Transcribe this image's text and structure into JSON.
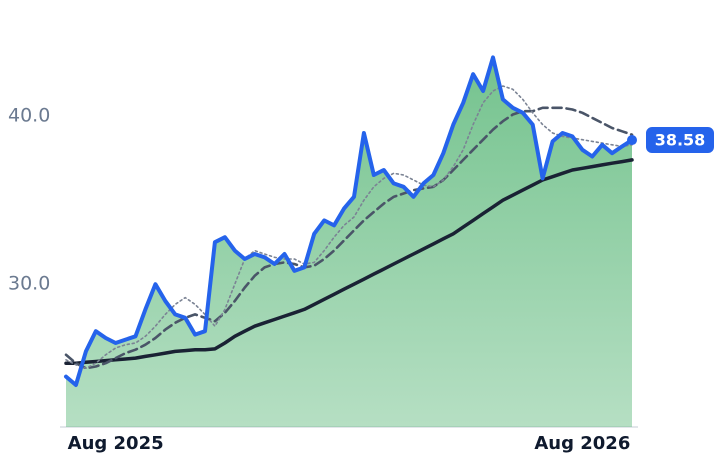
{
  "chart_data": {
    "type": "line",
    "categories": [
      null,
      null,
      null,
      null,
      null,
      "Aug 2025",
      null,
      null,
      null,
      null,
      null,
      null,
      null,
      null,
      null,
      null,
      null,
      null,
      null,
      null,
      null,
      null,
      null,
      null,
      null,
      null,
      null,
      null,
      null,
      null,
      null,
      null,
      null,
      null,
      null,
      null,
      null,
      null,
      null,
      null,
      null,
      null,
      null,
      null,
      null,
      null,
      null,
      null,
      null,
      null,
      null,
      null,
      "Aug 2026",
      null,
      null,
      null,
      null,
      null
    ],
    "series": [
      {
        "color": "#2563eb",
        "style": "solid",
        "area": true,
        "values": [
          24.5,
          24.0,
          26.0,
          27.2,
          26.8,
          26.5,
          26.7,
          26.9,
          28.5,
          30.0,
          29.0,
          28.2,
          28.0,
          27.0,
          27.2,
          32.5,
          32.8,
          32.0,
          31.5,
          31.8,
          31.6,
          31.2,
          31.8,
          30.8,
          31.0,
          33.0,
          33.8,
          33.5,
          34.5,
          35.2,
          39.0,
          36.5,
          36.8,
          36.0,
          35.8,
          35.2,
          36.0,
          36.5,
          37.8,
          39.5,
          40.8,
          42.5,
          41.5,
          43.5,
          41.0,
          40.5,
          40.2,
          39.5,
          36.3,
          38.5,
          39.0,
          38.8,
          38.0,
          37.6,
          38.3,
          37.8,
          38.2,
          38.58
        ]
      },
      {
        "color": "#7b8394",
        "style": "dotted",
        "values": [
          25.5,
          25.2,
          25.0,
          25.3,
          25.8,
          26.2,
          26.4,
          26.5,
          26.9,
          27.5,
          28.2,
          28.8,
          29.2,
          28.8,
          28.2,
          27.5,
          28.5,
          30.0,
          31.5,
          32.0,
          31.8,
          31.6,
          31.5,
          31.5,
          31.2,
          31.3,
          32.0,
          32.8,
          33.5,
          34.0,
          35.0,
          35.8,
          36.3,
          36.6,
          36.5,
          36.2,
          35.9,
          35.8,
          36.2,
          37.0,
          38.0,
          39.5,
          40.8,
          41.5,
          41.8,
          41.6,
          41.0,
          40.2,
          39.5,
          39.0,
          38.8,
          38.7,
          38.6,
          38.5,
          38.4,
          38.3,
          38.2,
          38.3
        ]
      },
      {
        "color": "#4a5568",
        "style": "dashed",
        "values": [
          25.8,
          25.3,
          25.0,
          25.1,
          25.3,
          25.6,
          25.9,
          26.1,
          26.4,
          26.8,
          27.3,
          27.7,
          28.0,
          28.2,
          28.0,
          27.8,
          28.3,
          29.0,
          29.8,
          30.5,
          31.0,
          31.2,
          31.3,
          31.2,
          31.0,
          31.1,
          31.5,
          32.0,
          32.6,
          33.2,
          33.8,
          34.3,
          34.8,
          35.2,
          35.4,
          35.6,
          35.7,
          35.8,
          36.2,
          36.8,
          37.4,
          38.0,
          38.6,
          39.2,
          39.7,
          40.1,
          40.3,
          40.3,
          40.5,
          40.5,
          40.5,
          40.4,
          40.2,
          39.9,
          39.6,
          39.3,
          39.1,
          38.9
        ]
      },
      {
        "color": "#1a2234",
        "style": "solid",
        "values": [
          25.3,
          25.3,
          25.35,
          25.4,
          25.45,
          25.5,
          25.55,
          25.6,
          25.7,
          25.8,
          25.9,
          26.0,
          26.05,
          26.1,
          26.1,
          26.15,
          26.5,
          26.9,
          27.2,
          27.5,
          27.7,
          27.9,
          28.1,
          28.3,
          28.5,
          28.8,
          29.1,
          29.4,
          29.7,
          30.0,
          30.3,
          30.6,
          30.9,
          31.2,
          31.5,
          31.8,
          32.1,
          32.4,
          32.7,
          33.0,
          33.4,
          33.8,
          34.2,
          34.6,
          35.0,
          35.3,
          35.6,
          35.9,
          36.2,
          36.4,
          36.6,
          36.8,
          36.9,
          37.0,
          37.1,
          37.2,
          37.3,
          37.4
        ]
      }
    ],
    "ylim": [
      21.5,
      46.5
    ],
    "yticks": [
      {
        "value": 30,
        "label": "30.0"
      },
      {
        "value": 40,
        "label": "40.0"
      }
    ],
    "grid": false,
    "area_color": "#5cb87a"
  }
}
